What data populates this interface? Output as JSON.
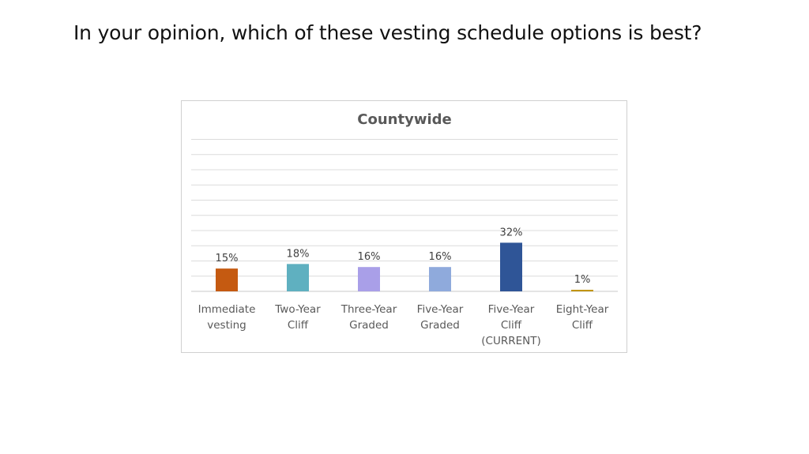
{
  "slide": {
    "title": "In your opinion, which of these vesting schedule options is best?"
  },
  "chart_data": {
    "type": "bar",
    "title": "Countywide",
    "categories": [
      [
        "Immediate",
        "vesting"
      ],
      [
        "Two-Year",
        "Cliff"
      ],
      [
        "Three-Year",
        "Graded"
      ],
      [
        "Five-Year",
        "Graded"
      ],
      [
        "Five-Year",
        "Cliff",
        "(CURRENT)"
      ],
      [
        "Eight-Year",
        "Cliff"
      ]
    ],
    "values": [
      15,
      18,
      16,
      16,
      32,
      1
    ],
    "data_labels": [
      "15%",
      "18%",
      "16%",
      "16%",
      "32%",
      "1%"
    ],
    "colors": [
      "#c55a11",
      "#5fb0c0",
      "#a99fe8",
      "#8faadc",
      "#2f5597",
      "#bf9000"
    ],
    "ylim": [
      0,
      100
    ],
    "grid": true,
    "legend": "none",
    "xlabel": "",
    "ylabel": ""
  }
}
